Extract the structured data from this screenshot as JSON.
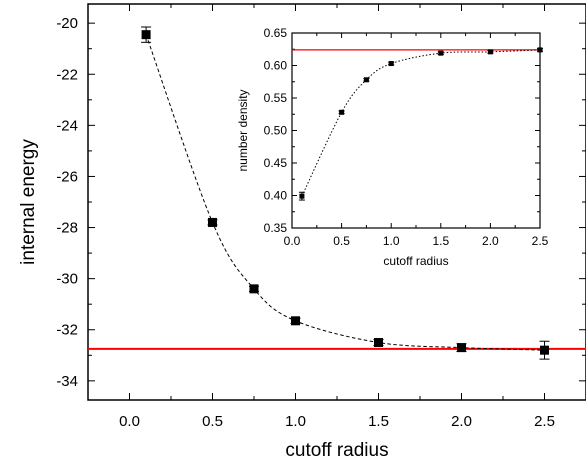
{
  "chart_data": [
    {
      "type": "scatter",
      "xlabel": "cutoff radius",
      "ylabel": "internal energy",
      "xlim": [
        -0.25,
        2.75
      ],
      "ylim": [
        -34.75,
        -19.25
      ],
      "xticks": [
        0.0,
        0.5,
        1.0,
        1.5,
        2.0,
        2.5
      ],
      "xtick_labels": [
        "0.0",
        "0.5",
        "1.0",
        "1.5",
        "2.0",
        "2.5"
      ],
      "yticks": [
        -34,
        -32,
        -30,
        -28,
        -26,
        -24,
        -22,
        -20
      ],
      "ytick_labels": [
        "-34",
        "-32",
        "-30",
        "-28",
        "-26",
        "-24",
        "-22",
        "-20"
      ],
      "series": [
        {
          "x": [
            0.1,
            0.5,
            0.75,
            1.0,
            1.5,
            2.0,
            2.5
          ],
          "y": [
            -20.45,
            -27.8,
            -30.4,
            -31.65,
            -32.5,
            -32.7,
            -32.8
          ],
          "yerr": [
            0.3,
            0.1,
            0.1,
            0.1,
            0.12,
            0.15,
            0.35
          ],
          "marker": "square",
          "fit": "dashed"
        }
      ],
      "reference_line": {
        "y": -32.75,
        "color": "#ff0000"
      },
      "grid": false
    },
    {
      "type": "scatter",
      "xlabel": "cutoff radius",
      "ylabel": "number density",
      "xlim": [
        0.0,
        2.5
      ],
      "ylim": [
        0.35,
        0.65
      ],
      "xticks": [
        0.0,
        0.5,
        1.0,
        1.5,
        2.0,
        2.5
      ],
      "xtick_labels": [
        "0.0",
        "0.5",
        "1.0",
        "1.5",
        "2.0",
        "2.5"
      ],
      "yticks": [
        0.35,
        0.4,
        0.45,
        0.5,
        0.55,
        0.6,
        0.65
      ],
      "ytick_labels": [
        "0.35",
        "0.40",
        "0.45",
        "0.50",
        "0.55",
        "0.60",
        "0.65"
      ],
      "series": [
        {
          "x": [
            0.1,
            0.5,
            0.75,
            1.0,
            1.5,
            2.0,
            2.5
          ],
          "y": [
            0.399,
            0.528,
            0.578,
            0.603,
            0.619,
            0.621,
            0.624
          ],
          "yerr": [
            0.006,
            0.002,
            0.002,
            0.002,
            0.002,
            0.002,
            0.002
          ],
          "marker": "square",
          "fit": "dotted"
        }
      ],
      "reference_line": {
        "y": 0.624,
        "color": "#ff0000"
      },
      "grid": false
    }
  ]
}
